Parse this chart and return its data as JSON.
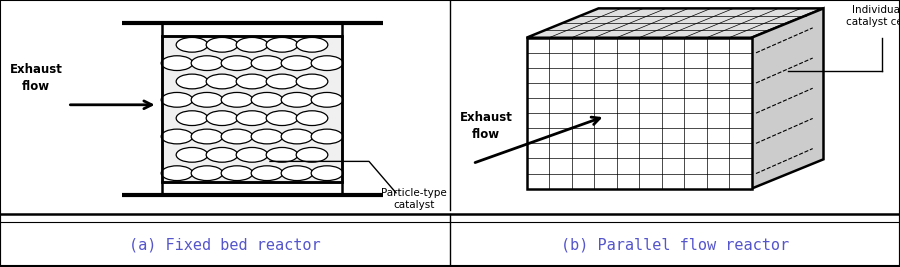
{
  "fig_width": 9.0,
  "fig_height": 2.67,
  "dpi": 100,
  "bg_color": "#ffffff",
  "line_color": "#000000",
  "label_a": "(a) Fixed bed reactor",
  "label_b": "(b) Parallel flow reactor",
  "exhaust_flow_left": "Exhaust\nflow",
  "exhaust_flow_right": "Exhaust\nflow",
  "particle_type_text": "Particle-type\ncatalyst",
  "individual_catalyst_text": "Individual\ncatalyst cell",
  "caption_fontsize": 11,
  "body_fontsize": 8,
  "caption_color": "#5555cc"
}
